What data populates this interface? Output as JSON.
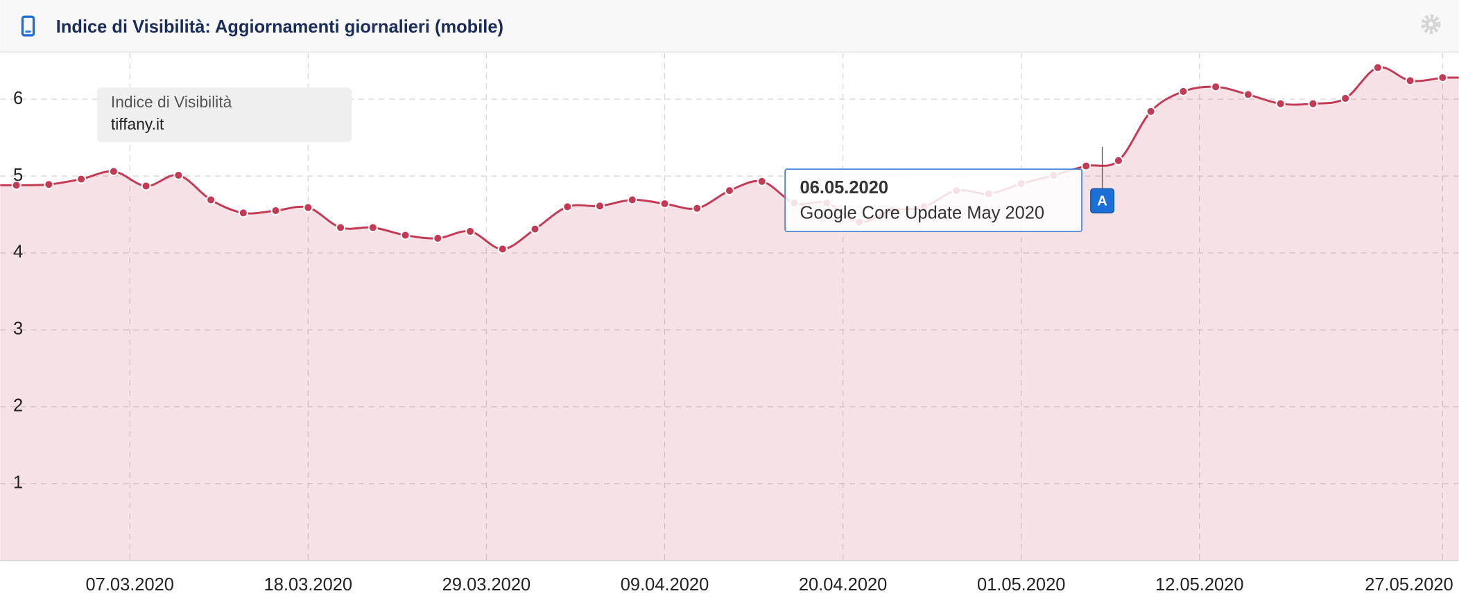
{
  "header": {
    "title": "Indice di Visibilità: Aggiornamenti giornalieri (mobile)"
  },
  "chart_data": {
    "type": "line",
    "legend": {
      "title": "Indice di Visibilità",
      "label": "tiffany.it"
    },
    "x": [
      "29.02.2020",
      "02.03.2020",
      "04.03.2020",
      "06.03.2020",
      "08.03.2020",
      "10.03.2020",
      "12.03.2020",
      "14.03.2020",
      "16.03.2020",
      "18.03.2020",
      "20.03.2020",
      "22.03.2020",
      "24.03.2020",
      "26.03.2020",
      "28.03.2020",
      "30.03.2020",
      "01.04.2020",
      "03.04.2020",
      "05.04.2020",
      "07.04.2020",
      "09.04.2020",
      "11.04.2020",
      "13.04.2020",
      "15.04.2020",
      "17.04.2020",
      "19.04.2020",
      "21.04.2020",
      "23.04.2020",
      "25.04.2020",
      "27.04.2020",
      "29.04.2020",
      "01.05.2020",
      "03.05.2020",
      "05.05.2020",
      "07.05.2020",
      "09.05.2020",
      "11.05.2020",
      "13.05.2020",
      "15.05.2020",
      "17.05.2020",
      "19.05.2020",
      "21.05.2020",
      "23.05.2020",
      "25.05.2020",
      "27.05.2020"
    ],
    "series": [
      {
        "name": "tiffany.it",
        "color": "#c43a55",
        "values": [
          4.88,
          4.89,
          4.96,
          5.06,
          4.87,
          5.01,
          4.69,
          4.52,
          4.55,
          4.59,
          4.33,
          4.33,
          4.23,
          4.19,
          4.28,
          4.05,
          4.31,
          4.6,
          4.61,
          4.69,
          4.64,
          4.58,
          4.81,
          4.93,
          4.65,
          4.65,
          4.4,
          4.55,
          4.6,
          4.81,
          4.77,
          4.9,
          5.01,
          5.13,
          5.2,
          5.84,
          6.1,
          6.16,
          6.06,
          5.94,
          5.94,
          6.01,
          6.41,
          6.24,
          6.28
        ]
      }
    ],
    "xlim": [
      "28.02.2020",
      "28.05.2020"
    ],
    "xticks": [
      "07.03.2020",
      "18.03.2020",
      "29.03.2020",
      "09.04.2020",
      "20.04.2020",
      "01.05.2020",
      "12.05.2020",
      "27.05.2020"
    ],
    "ylim": [
      0,
      6.6
    ],
    "yticks": [
      1,
      2,
      3,
      4,
      5,
      6
    ],
    "grid": true,
    "annotations": [
      {
        "date": "06.05.2020",
        "flag": "A",
        "text": "Google Core Update May 2020"
      }
    ]
  }
}
